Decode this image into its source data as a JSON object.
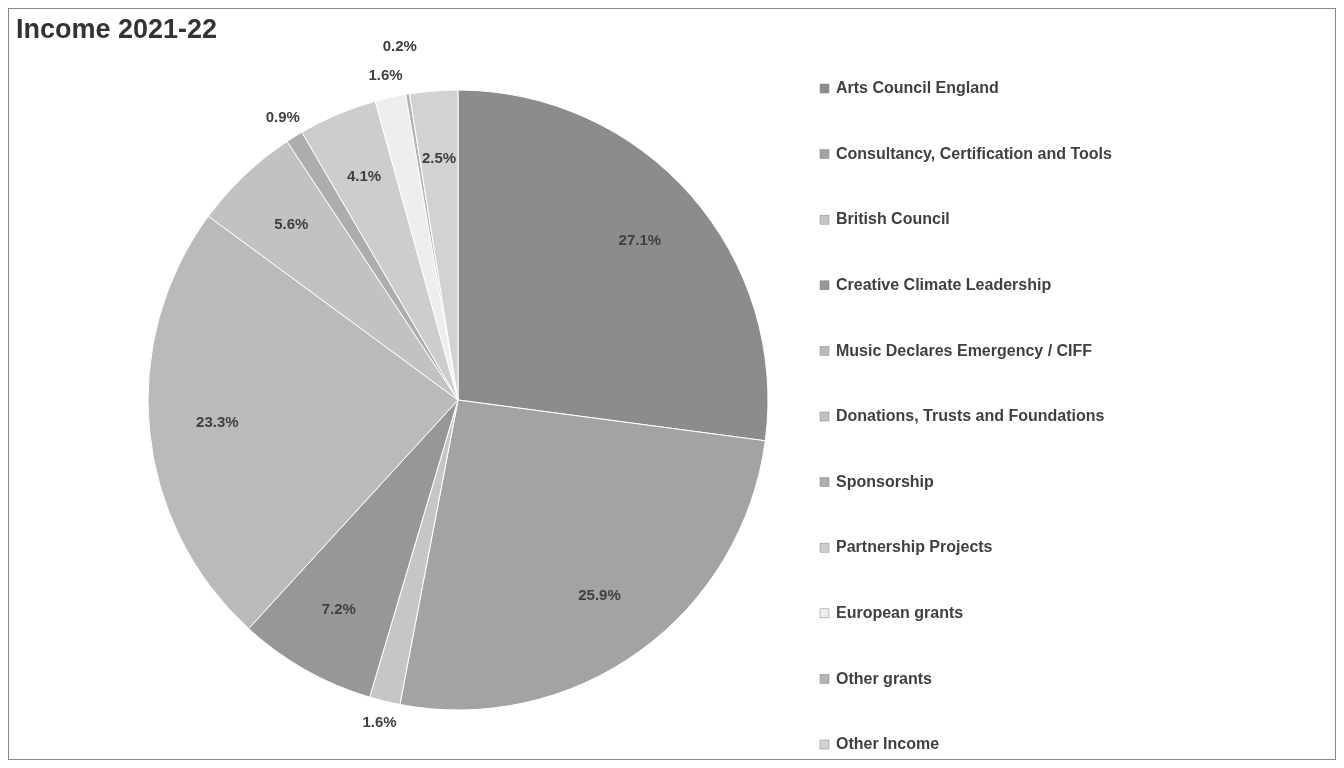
{
  "chart_data": {
    "type": "pie",
    "title": "Income 2021-22",
    "categories": [
      "Arts Council England",
      "Consultancy, Certification and Tools",
      "British Council",
      "Creative Climate Leadership",
      "Music Declares Emergency / CIFF",
      "Donations, Trusts and Foundations",
      "Sponsorship",
      "Partnership Projects",
      "European grants",
      "Other grants",
      "Other Income"
    ],
    "values": [
      27.1,
      25.9,
      1.6,
      7.2,
      23.3,
      5.6,
      0.9,
      4.1,
      1.6,
      0.2,
      2.5
    ],
    "value_labels": [
      "27.1%",
      "25.9%",
      "1.6%",
      "7.2%",
      "23.3%",
      "5.6%",
      "0.9%",
      "4.1%",
      "1.6%",
      "0.2%",
      "2.5%"
    ],
    "colors": [
      "#8c8c8c",
      "#a3a3a3",
      "#c6c6c6",
      "#979797",
      "#bababa",
      "#c2c2c2",
      "#adadad",
      "#cdcdcd",
      "#eeeeee",
      "#b3b3b3",
      "#d2d2d2"
    ],
    "legend": "right"
  }
}
